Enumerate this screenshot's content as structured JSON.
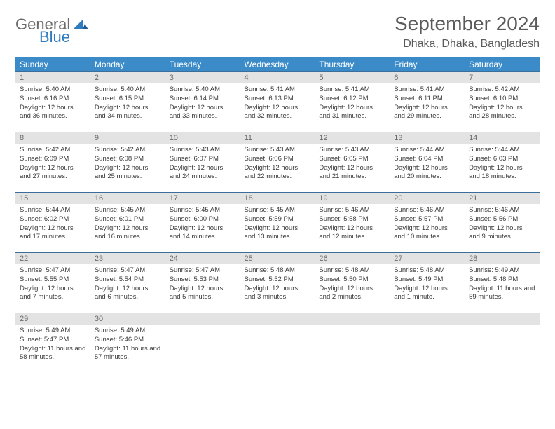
{
  "brand": {
    "word1": "General",
    "word2": "Blue"
  },
  "title": "September 2024",
  "location": "Dhaka, Dhaka, Bangladesh",
  "colors": {
    "header_bg": "#3b8bc8",
    "header_text": "#ffffff",
    "cell_border": "#3b6e9a",
    "daynum_bg": "#e3e3e3",
    "daynum_text": "#6a6a6a",
    "body_text": "#3a3a3a",
    "title_text": "#5a5a5a",
    "brand_gray": "#6b6b6b",
    "brand_blue": "#2f7bbf"
  },
  "weekdays": [
    "Sunday",
    "Monday",
    "Tuesday",
    "Wednesday",
    "Thursday",
    "Friday",
    "Saturday"
  ],
  "weeks": [
    [
      {
        "n": "1",
        "sr": "5:40 AM",
        "ss": "6:16 PM",
        "dl": "12 hours and 36 minutes."
      },
      {
        "n": "2",
        "sr": "5:40 AM",
        "ss": "6:15 PM",
        "dl": "12 hours and 34 minutes."
      },
      {
        "n": "3",
        "sr": "5:40 AM",
        "ss": "6:14 PM",
        "dl": "12 hours and 33 minutes."
      },
      {
        "n": "4",
        "sr": "5:41 AM",
        "ss": "6:13 PM",
        "dl": "12 hours and 32 minutes."
      },
      {
        "n": "5",
        "sr": "5:41 AM",
        "ss": "6:12 PM",
        "dl": "12 hours and 31 minutes."
      },
      {
        "n": "6",
        "sr": "5:41 AM",
        "ss": "6:11 PM",
        "dl": "12 hours and 29 minutes."
      },
      {
        "n": "7",
        "sr": "5:42 AM",
        "ss": "6:10 PM",
        "dl": "12 hours and 28 minutes."
      }
    ],
    [
      {
        "n": "8",
        "sr": "5:42 AM",
        "ss": "6:09 PM",
        "dl": "12 hours and 27 minutes."
      },
      {
        "n": "9",
        "sr": "5:42 AM",
        "ss": "6:08 PM",
        "dl": "12 hours and 25 minutes."
      },
      {
        "n": "10",
        "sr": "5:43 AM",
        "ss": "6:07 PM",
        "dl": "12 hours and 24 minutes."
      },
      {
        "n": "11",
        "sr": "5:43 AM",
        "ss": "6:06 PM",
        "dl": "12 hours and 22 minutes."
      },
      {
        "n": "12",
        "sr": "5:43 AM",
        "ss": "6:05 PM",
        "dl": "12 hours and 21 minutes."
      },
      {
        "n": "13",
        "sr": "5:44 AM",
        "ss": "6:04 PM",
        "dl": "12 hours and 20 minutes."
      },
      {
        "n": "14",
        "sr": "5:44 AM",
        "ss": "6:03 PM",
        "dl": "12 hours and 18 minutes."
      }
    ],
    [
      {
        "n": "15",
        "sr": "5:44 AM",
        "ss": "6:02 PM",
        "dl": "12 hours and 17 minutes."
      },
      {
        "n": "16",
        "sr": "5:45 AM",
        "ss": "6:01 PM",
        "dl": "12 hours and 16 minutes."
      },
      {
        "n": "17",
        "sr": "5:45 AM",
        "ss": "6:00 PM",
        "dl": "12 hours and 14 minutes."
      },
      {
        "n": "18",
        "sr": "5:45 AM",
        "ss": "5:59 PM",
        "dl": "12 hours and 13 minutes."
      },
      {
        "n": "19",
        "sr": "5:46 AM",
        "ss": "5:58 PM",
        "dl": "12 hours and 12 minutes."
      },
      {
        "n": "20",
        "sr": "5:46 AM",
        "ss": "5:57 PM",
        "dl": "12 hours and 10 minutes."
      },
      {
        "n": "21",
        "sr": "5:46 AM",
        "ss": "5:56 PM",
        "dl": "12 hours and 9 minutes."
      }
    ],
    [
      {
        "n": "22",
        "sr": "5:47 AM",
        "ss": "5:55 PM",
        "dl": "12 hours and 7 minutes."
      },
      {
        "n": "23",
        "sr": "5:47 AM",
        "ss": "5:54 PM",
        "dl": "12 hours and 6 minutes."
      },
      {
        "n": "24",
        "sr": "5:47 AM",
        "ss": "5:53 PM",
        "dl": "12 hours and 5 minutes."
      },
      {
        "n": "25",
        "sr": "5:48 AM",
        "ss": "5:52 PM",
        "dl": "12 hours and 3 minutes."
      },
      {
        "n": "26",
        "sr": "5:48 AM",
        "ss": "5:50 PM",
        "dl": "12 hours and 2 minutes."
      },
      {
        "n": "27",
        "sr": "5:48 AM",
        "ss": "5:49 PM",
        "dl": "12 hours and 1 minute."
      },
      {
        "n": "28",
        "sr": "5:49 AM",
        "ss": "5:48 PM",
        "dl": "11 hours and 59 minutes."
      }
    ],
    [
      {
        "n": "29",
        "sr": "5:49 AM",
        "ss": "5:47 PM",
        "dl": "11 hours and 58 minutes."
      },
      {
        "n": "30",
        "sr": "5:49 AM",
        "ss": "5:46 PM",
        "dl": "11 hours and 57 minutes."
      },
      null,
      null,
      null,
      null,
      null
    ]
  ],
  "labels": {
    "sunrise": "Sunrise:",
    "sunset": "Sunset:",
    "daylight": "Daylight:"
  }
}
